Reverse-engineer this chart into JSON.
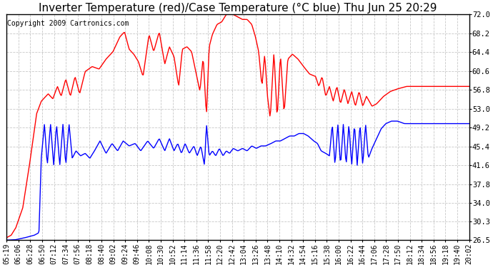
{
  "title": "Inverter Temperature (red)/Case Temperature (°C blue) Thu Jun 25 20:29",
  "copyright": "Copyright 2009 Cartronics.com",
  "yticks": [
    26.5,
    30.3,
    34.0,
    37.8,
    41.6,
    45.4,
    49.2,
    53.0,
    56.8,
    60.6,
    64.4,
    68.2,
    72.0
  ],
  "ylim": [
    26.5,
    72.0
  ],
  "bg_color": "#ffffff",
  "plot_bg_color": "#ffffff",
  "grid_color": "#c8c8c8",
  "grid_style": "--",
  "red_color": "#ff0000",
  "blue_color": "#0000ff",
  "title_fontsize": 11,
  "copyright_fontsize": 7,
  "tick_fontsize": 7.5,
  "linewidth": 1.0,
  "xtick_labels": [
    "05:19",
    "06:06",
    "06:28",
    "06:50",
    "07:12",
    "07:34",
    "07:56",
    "08:18",
    "08:40",
    "09:02",
    "09:24",
    "09:46",
    "10:08",
    "10:30",
    "10:52",
    "11:14",
    "11:36",
    "11:58",
    "12:20",
    "12:42",
    "13:04",
    "13:26",
    "13:48",
    "14:10",
    "14:32",
    "14:54",
    "15:16",
    "15:38",
    "16:00",
    "16:22",
    "16:44",
    "17:06",
    "17:28",
    "17:50",
    "18:12",
    "18:34",
    "18:56",
    "19:18",
    "19:40",
    "20:02"
  ]
}
